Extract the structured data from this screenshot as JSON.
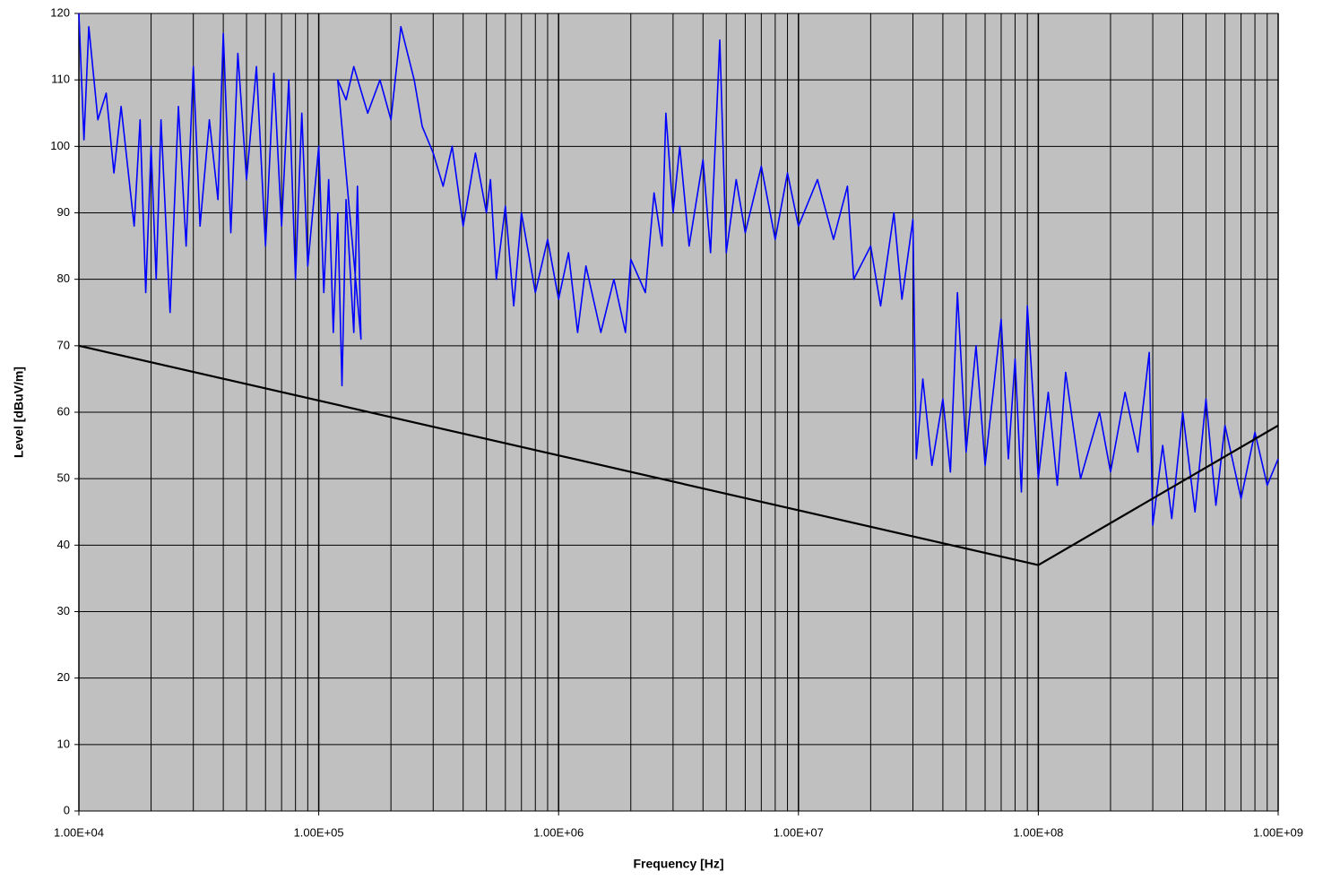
{
  "chart_data": {
    "type": "line",
    "xlabel": "Frequency [Hz]",
    "ylabel": "Level [dBuV/m]",
    "xscale": "log",
    "xlim": [
      10000,
      1000000000
    ],
    "xticks": [
      {
        "value": 10000,
        "label": "1.00E+04"
      },
      {
        "value": 100000,
        "label": "1.00E+05"
      },
      {
        "value": 1000000,
        "label": "1.00E+06"
      },
      {
        "value": 10000000,
        "label": "1.00E+07"
      },
      {
        "value": 100000000,
        "label": "1.00E+08"
      },
      {
        "value": 1000000000,
        "label": "1.00E+09"
      }
    ],
    "x_minor_grid": [
      20000,
      30000,
      40000,
      50000,
      60000,
      70000,
      80000,
      90000,
      200000,
      300000,
      400000,
      500000,
      600000,
      700000,
      800000,
      900000,
      2000000,
      3000000,
      4000000,
      5000000,
      6000000,
      7000000,
      8000000,
      9000000,
      20000000,
      30000000,
      40000000,
      50000000,
      60000000,
      70000000,
      80000000,
      90000000,
      200000000,
      300000000,
      400000000,
      500000000,
      600000000,
      700000000,
      800000000,
      900000000
    ],
    "ylim": [
      0,
      120
    ],
    "yticks": [
      0,
      10,
      20,
      30,
      40,
      50,
      60,
      70,
      80,
      90,
      100,
      110,
      120
    ],
    "grid": true,
    "background": "#c0c0c0",
    "series": [
      {
        "color": "#0000ff",
        "x": [
          10000,
          10500,
          11000,
          12000,
          13000,
          14000,
          15000,
          17000,
          18000,
          19000,
          20000,
          21000,
          22000,
          24000,
          26000,
          28000,
          30000,
          32000,
          35000,
          38000,
          40000,
          43000,
          46000,
          50000,
          55000,
          60000,
          65000,
          70000,
          75000,
          80000,
          85000,
          90000,
          100000,
          105000,
          110000,
          115000,
          120000,
          125000,
          130000,
          140000,
          145000,
          150000,
          120000,
          130000,
          140000,
          160000,
          180000,
          200000,
          220000,
          250000,
          270000,
          300000,
          330000,
          360000,
          400000,
          450000,
          500000,
          520000,
          550000,
          600000,
          650000,
          700000,
          800000,
          900000,
          1000000,
          1100000,
          1200000,
          1300000,
          1500000,
          1700000,
          1900000,
          2000000,
          2300000,
          2500000,
          2700000,
          2800000,
          3000000,
          3200000,
          3500000,
          4000000,
          4300000,
          4700000,
          5000000,
          5500000,
          6000000,
          7000000,
          8000000,
          9000000,
          10000000,
          12000000,
          14000000,
          16000000,
          17000000,
          20000000,
          22000000,
          25000000,
          27000000,
          30000000,
          31000000,
          33000000,
          36000000,
          40000000,
          43000000,
          46000000,
          50000000,
          55000000,
          60000000,
          70000000,
          75000000,
          80000000,
          85000000,
          90000000,
          100000000,
          110000000,
          120000000,
          130000000,
          150000000,
          180000000,
          200000000,
          230000000,
          260000000,
          290000000,
          300000000,
          330000000,
          360000000,
          400000000,
          450000000,
          500000000,
          550000000,
          600000000,
          700000000,
          800000000,
          900000000,
          1000000000
        ],
        "values": [
          120,
          101,
          118,
          104,
          108,
          96,
          106,
          88,
          104,
          78,
          100,
          80,
          104,
          75,
          106,
          85,
          112,
          88,
          104,
          92,
          117,
          87,
          114,
          95,
          112,
          85,
          111,
          88,
          110,
          80,
          105,
          82,
          100,
          78,
          95,
          72,
          90,
          64,
          92,
          72,
          94,
          71,
          110,
          107,
          112,
          105,
          110,
          104,
          118,
          110,
          103,
          99,
          94,
          100,
          88,
          99,
          90,
          95,
          80,
          91,
          76,
          90,
          78,
          86,
          77,
          84,
          72,
          82,
          72,
          80,
          72,
          83,
          78,
          93,
          85,
          105,
          90,
          100,
          85,
          98,
          84,
          116,
          84,
          95,
          87,
          97,
          86,
          96,
          88,
          95,
          86,
          94,
          80,
          85,
          76,
          90,
          77,
          89,
          53,
          65,
          52,
          62,
          51,
          78,
          54,
          70,
          52,
          74,
          53,
          68,
          48,
          76,
          50,
          63,
          49,
          66,
          50,
          60,
          51,
          63,
          54,
          69,
          43,
          55,
          44,
          60,
          45,
          62,
          46,
          58,
          47,
          57,
          49,
          53
        ]
      },
      {
        "color": "#000000",
        "x": [
          10000,
          100000000,
          1000000000
        ],
        "values": [
          70,
          37,
          58
        ]
      }
    ]
  }
}
